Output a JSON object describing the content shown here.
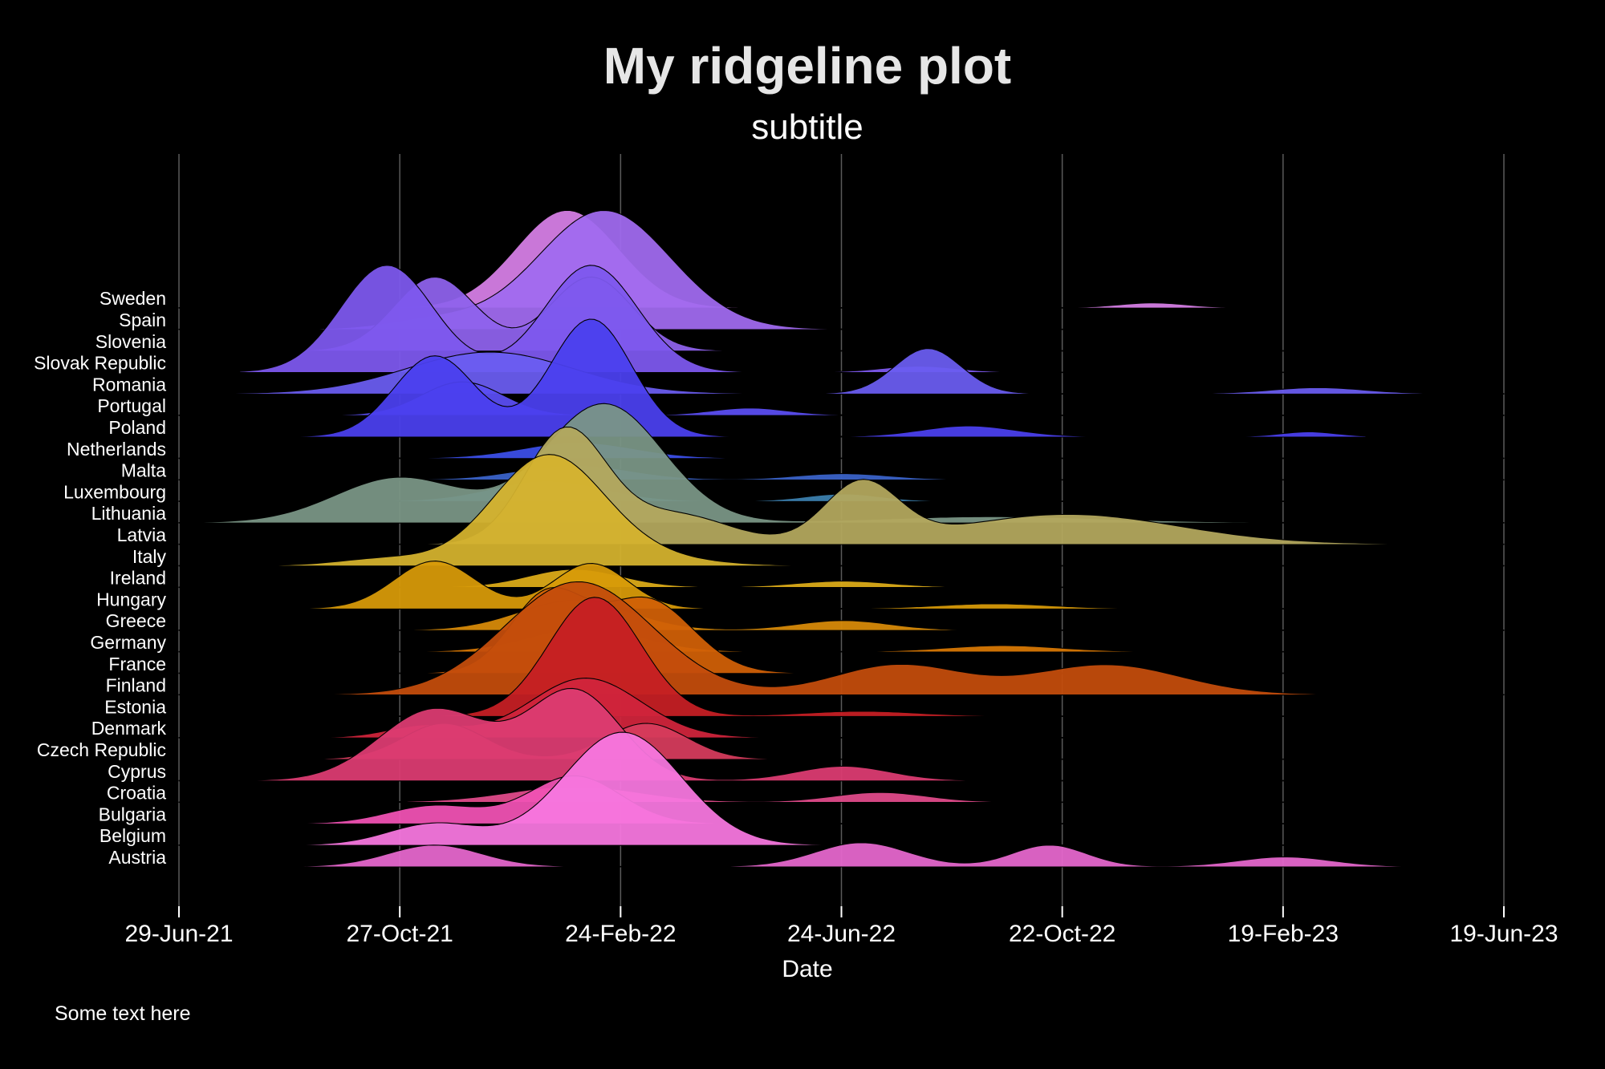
{
  "chart_data": {
    "type": "ridgeline",
    "title": "My ridgeline plot",
    "subtitle": "subtitle",
    "xlabel": "Date",
    "caption": "Some text here",
    "x_ticks": [
      "29-Jun-21",
      "27-Oct-21",
      "24-Feb-22",
      "24-Jun-22",
      "22-Oct-22",
      "19-Feb-23",
      "19-Jun-23"
    ],
    "xlim": [
      "2021-06-29",
      "2023-06-19"
    ],
    "grid": true,
    "density_unit": "relative density (tallest ridge = 1)",
    "series": [
      {
        "name": "Sweden",
        "color": "#d67ee5",
        "range": [
          "2021-06-29",
          "2023-02-05"
        ],
        "peaks": [
          {
            "center": "2022-01-26",
            "sd_days": 28,
            "height": 0.82
          },
          {
            "center": "2022-12-10",
            "sd_days": 18,
            "height": 0.04
          }
        ]
      },
      {
        "name": "Spain",
        "color": "#a06aef",
        "range": [
          "2021-06-29",
          "2022-12-20"
        ],
        "peaks": [
          {
            "center": "2022-02-15",
            "sd_days": 36,
            "height": 1.0
          },
          {
            "center": "2021-11-15",
            "sd_days": 25,
            "height": 0.08
          }
        ]
      },
      {
        "name": "Slovenia",
        "color": "#8e62ec",
        "range": [
          "2021-07-15",
          "2023-03-25"
        ],
        "peaks": [
          {
            "center": "2021-11-15",
            "sd_days": 22,
            "height": 0.62
          },
          {
            "center": "2022-02-08",
            "sd_days": 22,
            "height": 0.62
          }
        ]
      },
      {
        "name": "Slovak Republic",
        "color": "#7d58ee",
        "range": [
          "2021-08-01",
          "2023-03-25"
        ],
        "peaks": [
          {
            "center": "2021-10-20",
            "sd_days": 25,
            "height": 0.9
          },
          {
            "center": "2022-02-08",
            "sd_days": 25,
            "height": 0.9
          },
          {
            "center": "2022-08-05",
            "sd_days": 20,
            "height": 0.05
          }
        ]
      },
      {
        "name": "Romania",
        "color": "#6a5cf0",
        "range": [
          "2021-07-15",
          "2023-06-19"
        ],
        "peaks": [
          {
            "center": "2021-12-15",
            "sd_days": 45,
            "height": 0.35
          },
          {
            "center": "2022-08-10",
            "sd_days": 18,
            "height": 0.38
          },
          {
            "center": "2023-03-10",
            "sd_days": 25,
            "height": 0.05
          }
        ]
      },
      {
        "name": "Portugal",
        "color": "#5a4ef2",
        "range": [
          "2021-06-29",
          "2023-06-19"
        ],
        "peaks": [
          {
            "center": "2021-11-30",
            "sd_days": 22,
            "height": 0.28
          },
          {
            "center": "2022-05-05",
            "sd_days": 20,
            "height": 0.06
          }
        ]
      },
      {
        "name": "Poland",
        "color": "#4a40ee",
        "range": [
          "2021-07-15",
          "2023-04-05"
        ],
        "peaks": [
          {
            "center": "2021-11-15",
            "sd_days": 22,
            "height": 0.68
          },
          {
            "center": "2022-02-08",
            "sd_days": 22,
            "height": 0.99
          },
          {
            "center": "2022-09-01",
            "sd_days": 25,
            "height": 0.09
          },
          {
            "center": "2023-03-05",
            "sd_days": 15,
            "height": 0.04
          }
        ]
      },
      {
        "name": "Netherlands",
        "color": "#3b4fe8",
        "range": [
          "2021-06-29",
          "2023-06-19"
        ],
        "peaks": [
          {
            "center": "2022-02-01",
            "sd_days": 30,
            "height": 0.13
          }
        ]
      },
      {
        "name": "Malta",
        "color": "#3a63c9",
        "range": [
          "2021-06-29",
          "2023-06-19"
        ],
        "peaks": [
          {
            "center": "2022-01-30",
            "sd_days": 30,
            "height": 0.12
          },
          {
            "center": "2022-06-25",
            "sd_days": 25,
            "height": 0.05
          }
        ]
      },
      {
        "name": "Luxembourg",
        "color": "#3b7fae",
        "range": [
          "2021-06-29",
          "2023-04-05"
        ],
        "peaks": [
          {
            "center": "2022-01-15",
            "sd_days": 30,
            "height": 0.17
          },
          {
            "center": "2022-06-25",
            "sd_days": 20,
            "height": 0.06
          }
        ]
      },
      {
        "name": "Lithuania",
        "color": "#7a9686",
        "range": [
          "2021-06-29",
          "2023-06-19"
        ],
        "peaks": [
          {
            "center": "2022-02-15",
            "sd_days": 32,
            "height": 1.0
          },
          {
            "center": "2021-10-27",
            "sd_days": 35,
            "height": 0.38
          },
          {
            "center": "2022-09-15",
            "sd_days": 60,
            "height": 0.05
          }
        ]
      },
      {
        "name": "Latvia",
        "color": "#b4a85e",
        "range": [
          "2021-06-29",
          "2023-06-19"
        ],
        "peaks": [
          {
            "center": "2022-01-25",
            "sd_days": 22,
            "height": 0.95
          },
          {
            "center": "2022-03-25",
            "sd_days": 30,
            "height": 0.25
          },
          {
            "center": "2022-07-05",
            "sd_days": 20,
            "height": 0.5
          },
          {
            "center": "2022-10-25",
            "sd_days": 60,
            "height": 0.25
          }
        ]
      },
      {
        "name": "Italy",
        "color": "#d4b22e",
        "range": [
          "2021-06-29",
          "2023-06-19"
        ],
        "peaks": [
          {
            "center": "2022-01-15",
            "sd_days": 30,
            "height": 0.9
          },
          {
            "center": "2022-03-01",
            "sd_days": 35,
            "height": 0.08
          },
          {
            "center": "2021-10-20",
            "sd_days": 25,
            "height": 0.06
          }
        ]
      },
      {
        "name": "Ireland",
        "color": "#dcab18",
        "range": [
          "2021-06-29",
          "2023-01-05"
        ],
        "peaks": [
          {
            "center": "2022-01-30",
            "sd_days": 25,
            "height": 0.15
          },
          {
            "center": "2022-06-25",
            "sd_days": 25,
            "height": 0.05
          }
        ]
      },
      {
        "name": "Hungary",
        "color": "#d89a08",
        "range": [
          "2021-07-15",
          "2023-05-05"
        ],
        "peaks": [
          {
            "center": "2021-11-15",
            "sd_days": 22,
            "height": 0.4
          },
          {
            "center": "2022-02-08",
            "sd_days": 20,
            "height": 0.38
          },
          {
            "center": "2022-09-15",
            "sd_days": 30,
            "height": 0.04
          }
        ]
      },
      {
        "name": "Greece",
        "color": "#d88a08",
        "range": [
          "2021-06-29",
          "2023-06-19"
        ],
        "peaks": [
          {
            "center": "2022-01-30",
            "sd_days": 30,
            "height": 0.25
          },
          {
            "center": "2022-06-25",
            "sd_days": 25,
            "height": 0.08
          }
        ]
      },
      {
        "name": "Germany",
        "color": "#d87804",
        "range": [
          "2021-06-29",
          "2023-04-05"
        ],
        "peaks": [
          {
            "center": "2022-02-05",
            "sd_days": 30,
            "height": 0.2
          },
          {
            "center": "2022-09-20",
            "sd_days": 30,
            "height": 0.05
          }
        ]
      },
      {
        "name": "France",
        "color": "#d06006",
        "range": [
          "2021-06-29",
          "2023-03-20"
        ],
        "peaks": [
          {
            "center": "2022-01-15",
            "sd_days": 20,
            "height": 0.65
          },
          {
            "center": "2022-03-10",
            "sd_days": 25,
            "height": 0.62
          }
        ]
      },
      {
        "name": "Finland",
        "color": "#c44c0c",
        "range": [
          "2021-06-29",
          "2023-06-19"
        ],
        "peaks": [
          {
            "center": "2022-02-01",
            "sd_days": 40,
            "height": 0.95
          },
          {
            "center": "2022-07-25",
            "sd_days": 35,
            "height": 0.25
          },
          {
            "center": "2022-11-15",
            "sd_days": 40,
            "height": 0.25
          }
        ]
      },
      {
        "name": "Estonia",
        "color": "#c61f24",
        "range": [
          "2021-07-15",
          "2023-04-05"
        ],
        "peaks": [
          {
            "center": "2022-02-10",
            "sd_days": 25,
            "height": 1.0
          },
          {
            "center": "2022-07-05",
            "sd_days": 30,
            "height": 0.04
          }
        ]
      },
      {
        "name": "Denmark",
        "color": "#d0243c",
        "range": [
          "2021-06-29",
          "2023-01-15"
        ],
        "peaks": [
          {
            "center": "2022-02-05",
            "sd_days": 30,
            "height": 0.5
          },
          {
            "center": "2021-11-10",
            "sd_days": 20,
            "height": 0.1
          }
        ]
      },
      {
        "name": "Czech Republic",
        "color": "#d63c5c",
        "range": [
          "2021-07-15",
          "2023-04-05"
        ],
        "peaks": [
          {
            "center": "2021-11-20",
            "sd_days": 22,
            "height": 0.3
          },
          {
            "center": "2022-03-10",
            "sd_days": 22,
            "height": 0.3
          }
        ]
      },
      {
        "name": "Cyprus",
        "color": "#dc3c72",
        "range": [
          "2021-06-29",
          "2023-05-05"
        ],
        "peaks": [
          {
            "center": "2021-11-15",
            "sd_days": 30,
            "height": 0.6
          },
          {
            "center": "2022-01-30",
            "sd_days": 25,
            "height": 0.75
          },
          {
            "center": "2022-06-25",
            "sd_days": 25,
            "height": 0.12
          }
        ]
      },
      {
        "name": "Croatia",
        "color": "#e04a8a",
        "range": [
          "2021-06-29",
          "2023-05-05"
        ],
        "peaks": [
          {
            "center": "2022-01-30",
            "sd_days": 35,
            "height": 0.13
          },
          {
            "center": "2022-07-15",
            "sd_days": 25,
            "height": 0.08
          }
        ]
      },
      {
        "name": "Bulgaria",
        "color": "#f052b4",
        "range": [
          "2021-07-15",
          "2023-04-20"
        ],
        "peaks": [
          {
            "center": "2021-11-15",
            "sd_days": 25,
            "height": 0.15
          },
          {
            "center": "2022-01-30",
            "sd_days": 25,
            "height": 0.4
          }
        ]
      },
      {
        "name": "Belgium",
        "color": "#f777df",
        "range": [
          "2021-06-29",
          "2023-04-20"
        ],
        "peaks": [
          {
            "center": "2022-02-25",
            "sd_days": 32,
            "height": 0.95
          },
          {
            "center": "2021-11-15",
            "sd_days": 25,
            "height": 0.18
          }
        ]
      },
      {
        "name": "Austria",
        "color": "#e567cd",
        "range": [
          "2021-07-10",
          "2023-05-20"
        ],
        "peaks": [
          {
            "center": "2021-11-15",
            "sd_days": 25,
            "height": 0.18
          },
          {
            "center": "2022-07-05",
            "sd_days": 25,
            "height": 0.2
          },
          {
            "center": "2022-10-15",
            "sd_days": 20,
            "height": 0.18
          },
          {
            "center": "2023-02-20",
            "sd_days": 25,
            "height": 0.08
          }
        ]
      }
    ]
  }
}
